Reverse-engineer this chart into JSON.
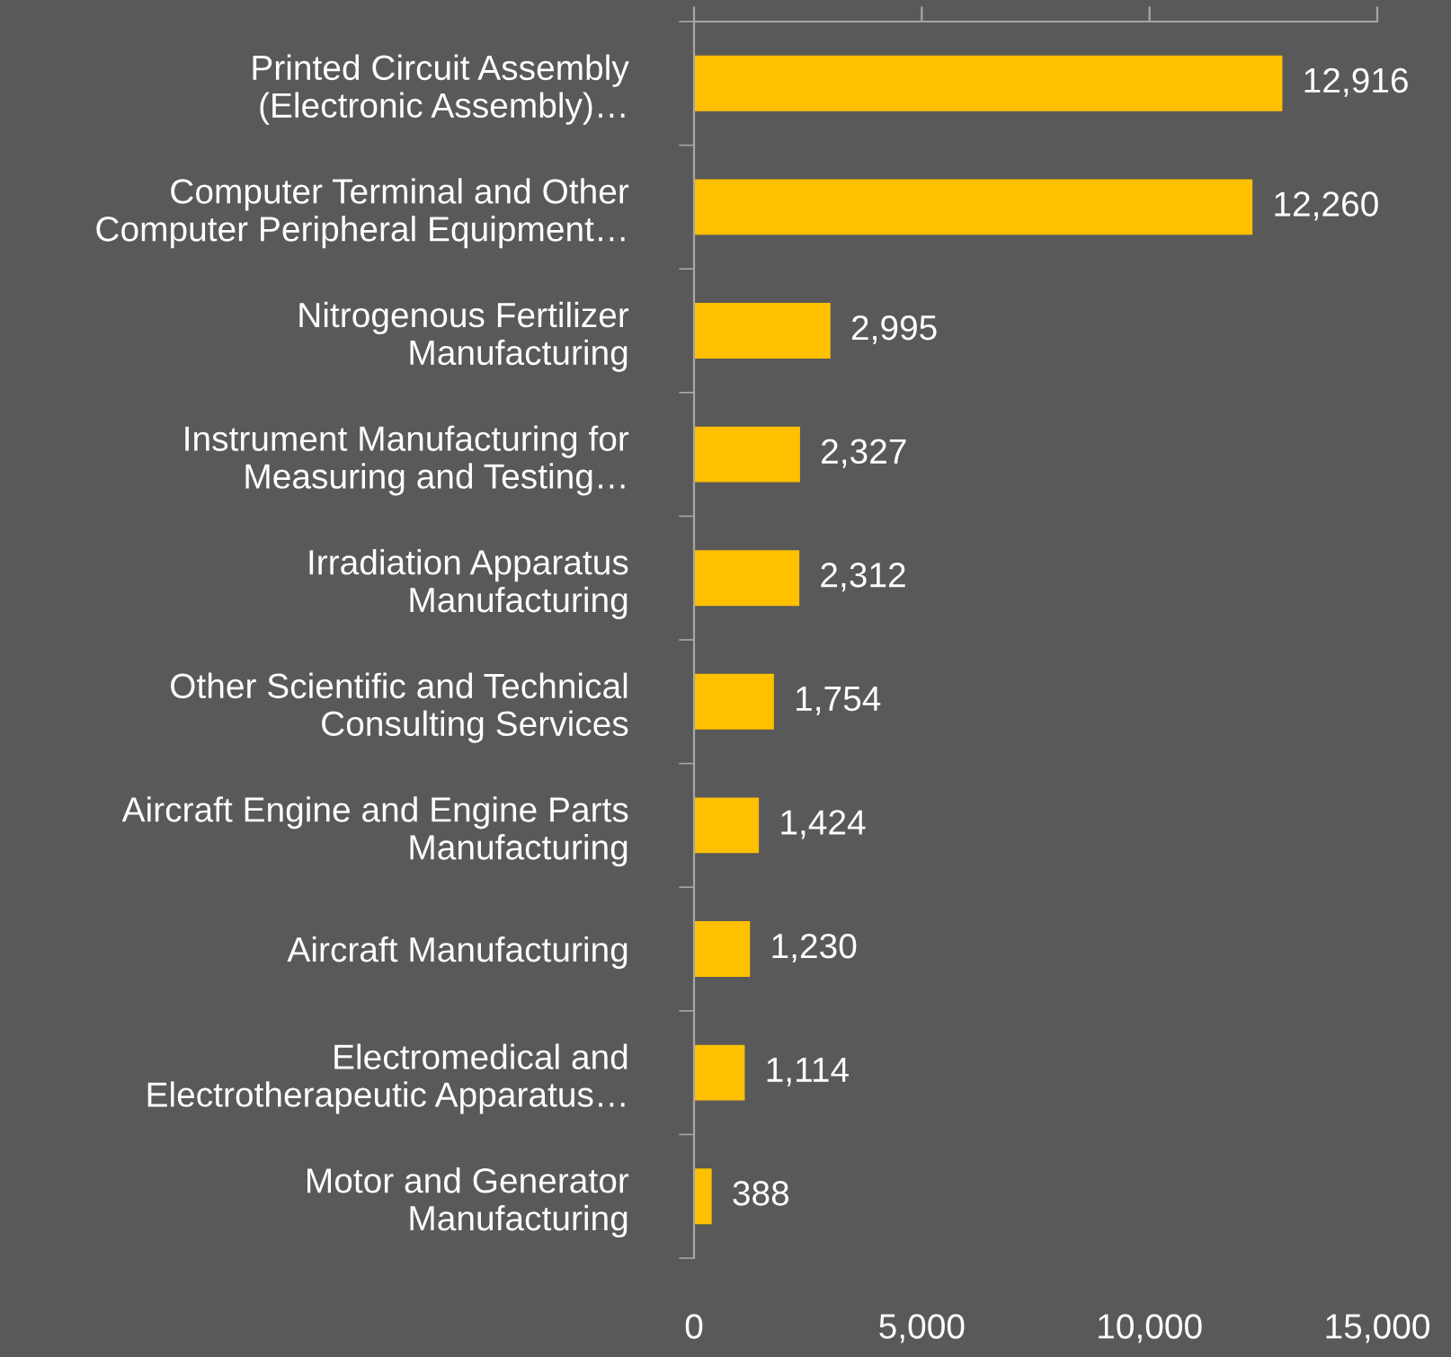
{
  "chart_data": {
    "type": "bar",
    "orientation": "horizontal",
    "categories": [
      "Printed Circuit Assembly\n(Electronic Assembly)…",
      "Computer Terminal and Other\nComputer Peripheral Equipment…",
      "Nitrogenous Fertilizer\nManufacturing",
      "Instrument Manufacturing for\nMeasuring and Testing…",
      "Irradiation Apparatus\nManufacturing",
      "Other Scientific and Technical\nConsulting Services",
      "Aircraft Engine and Engine Parts\nManufacturing",
      "Aircraft Manufacturing",
      "Electromedical and\nElectrotherapeutic Apparatus…",
      "Motor and Generator\nManufacturing"
    ],
    "values": [
      12916,
      12260,
      2995,
      2327,
      2312,
      1754,
      1424,
      1230,
      1114,
      388
    ],
    "value_labels": [
      "12,916",
      "12,260",
      "2,995",
      "2,327",
      "2,312",
      "1,754",
      "1,424",
      "1,230",
      "1,114",
      "388"
    ],
    "color": "#ffc000",
    "xlim": [
      0,
      15000
    ],
    "xticks": [
      0,
      {
        "value": 5000,
        "label": "5,000"
      },
      {
        "value": 10000,
        "label": "10,000"
      },
      {
        "value": 15000,
        "label": "15,000"
      }
    ],
    "grid": false,
    "legend": false
  }
}
